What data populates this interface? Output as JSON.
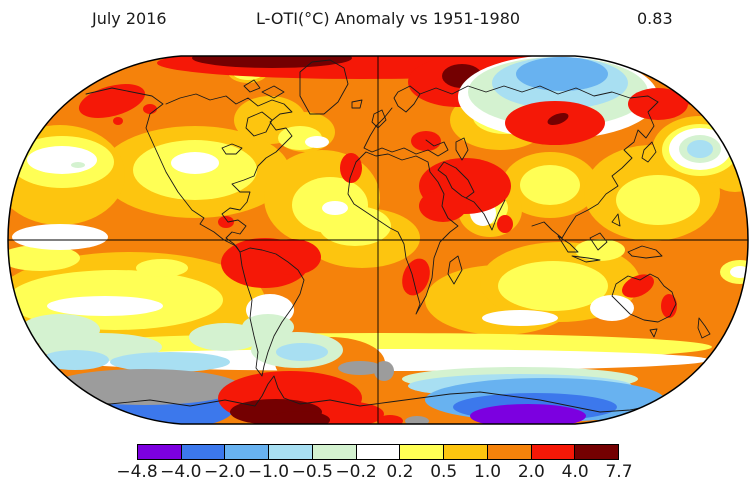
{
  "header": {
    "date_label": "July 2016",
    "title": "L-OTI(°C) Anomaly vs 1951-1980",
    "value": "0.83"
  },
  "colorbar": {
    "labels": [
      "−4.8",
      "−4.0",
      "−2.0",
      "−1.0",
      "−0.5",
      "−0.2",
      "0.2",
      "0.5",
      "1.0",
      "2.0",
      "4.0",
      "7.7"
    ],
    "colors": [
      "#7c00e0",
      "#3c78ec",
      "#68b2f0",
      "#a8dff2",
      "#d4f2d0",
      "#ffffff",
      "#ffff55",
      "#fdc50f",
      "#f5820b",
      "#f51807",
      "#740001"
    ]
  },
  "palette": {
    "purple": "#7c00e0",
    "blue": "#3c78ec",
    "sky": "#68b2f0",
    "cyan": "#a8dff2",
    "green": "#d4f2d0",
    "white": "#ffffff",
    "yellow": "#ffff55",
    "gold": "#fdc50f",
    "orange": "#f5820b",
    "red": "#f51807",
    "darkred": "#740001",
    "nodata": "#9c9c9c",
    "coast": "#1a1a1a",
    "outline": "#000000"
  },
  "chart_data": {
    "type": "heatmap",
    "title": "L-OTI(°C) Anomaly vs 1951-1980",
    "period": "July 2016",
    "baseline": "1951-1980",
    "units": "°C",
    "global_mean_anomaly_c": 0.83,
    "projection": "Robinson",
    "legend_position": "bottom",
    "scale_breakpoints_c": [
      -4.8,
      -4.0,
      -2.0,
      -1.0,
      -0.5,
      -0.2,
      0.2,
      0.5,
      1.0,
      2.0,
      4.0,
      7.7
    ],
    "scale_colors": [
      "#7c00e0",
      "#3c78ec",
      "#68b2f0",
      "#a8dff2",
      "#d4f2d0",
      "#ffffff",
      "#ffff55",
      "#fdc50f",
      "#f5820b",
      "#f51807",
      "#740001"
    ],
    "no_data_color": "#9c9c9c",
    "notable_anomalies": [
      {
        "region": "Arctic rim / far northern latitudes",
        "anomaly_c": "+4 to +7.7"
      },
      {
        "region": "Barents Sea / Novaya Zemlya",
        "anomaly_c": "+4 to +7.7"
      },
      {
        "region": "Alaska",
        "anomaly_c": "+2 to +4"
      },
      {
        "region": "Central Siberia",
        "anomaly_c": "+2 to +4"
      },
      {
        "region": "Middle East / Central Asia",
        "anomaly_c": "+2 to +4"
      },
      {
        "region": "Central South America (Brazil)",
        "anomaly_c": "+2 to +4"
      },
      {
        "region": "Northern and eastern Australia hot spots",
        "anomaly_c": "+2 to +4"
      },
      {
        "region": "Antarctic Peninsula sector",
        "anomaly_c": "+4 to +7.7"
      },
      {
        "region": "Arctic Ocean north of Siberia",
        "anomaly_c": "-0.5 to -2.0"
      },
      {
        "region": "East Antarctic coast",
        "anomaly_c": "-2.0 to -4.8"
      },
      {
        "region": "Southern Ocean near Antarctica",
        "anomaly_c": "no data"
      }
    ]
  }
}
